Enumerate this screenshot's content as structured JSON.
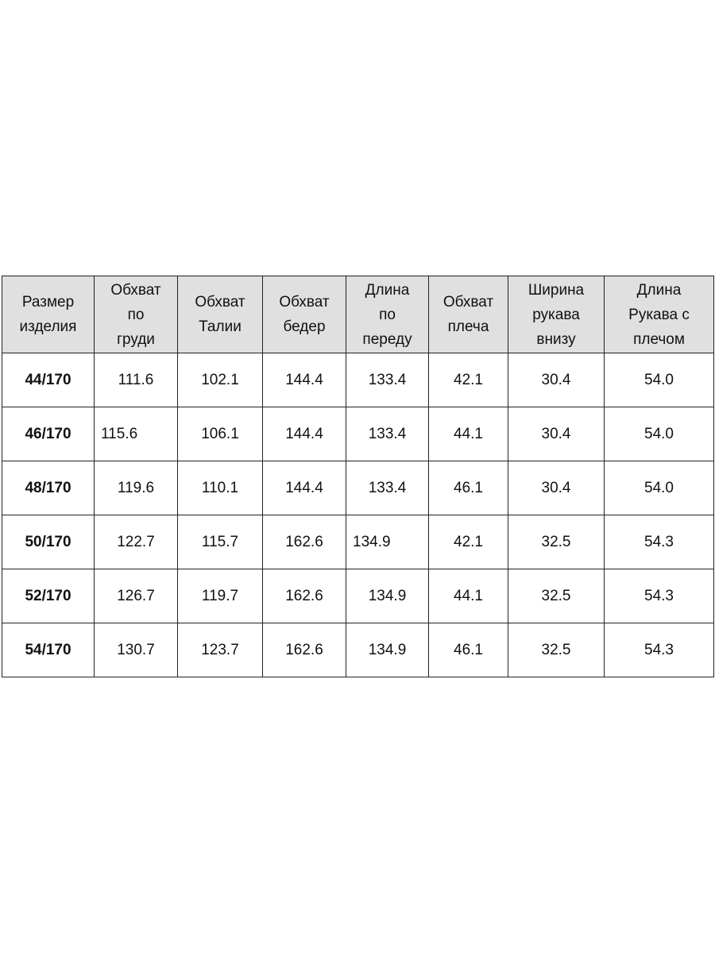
{
  "table": {
    "headers": [
      "Размер\nизделия",
      "Обхват\nпо\nгруди",
      "Обхват\nТалии",
      "Обхват\nбедер",
      "Длина\nпо\nпереду",
      "Обхват\nплеча",
      "Ширина\nрукава\nвнизу",
      "Длина\nРукава с\nплечом"
    ],
    "rows": [
      [
        "44/170",
        "111.6",
        "102.1",
        "144.4",
        "133.4",
        "42.1",
        "30.4",
        "54.0"
      ],
      [
        "46/170",
        "115.6",
        "106.1",
        "144.4",
        "133.4",
        "44.1",
        "30.4",
        "54.0"
      ],
      [
        "48/170",
        "119.6",
        "110.1",
        "144.4",
        "133.4",
        "46.1",
        "30.4",
        "54.0"
      ],
      [
        "50/170",
        "122.7",
        "115.7",
        "162.6",
        "134.9",
        "42.1",
        "32.5",
        "54.3"
      ],
      [
        "52/170",
        "126.7",
        "119.7",
        "162.6",
        "134.9",
        "44.1",
        "32.5",
        "54.3"
      ],
      [
        "54/170",
        "130.7",
        "123.7",
        "162.6",
        "134.9",
        "46.1",
        "32.5",
        "54.3"
      ]
    ],
    "header_background": "#e0e0e0"
  }
}
